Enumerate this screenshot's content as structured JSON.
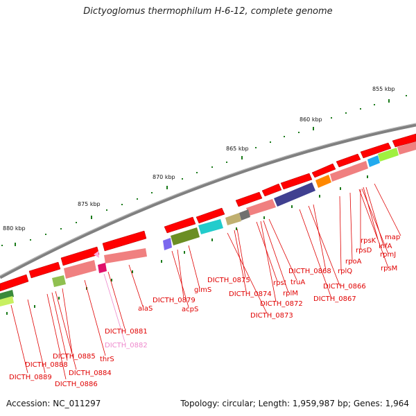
{
  "title": "Dictyoglomus thermophilum H-6-12, complete genome",
  "accession": "Accession: NC_011297",
  "summary": "Topology: circular; Length: 1,959,987 bp; Genes: 1,964",
  "ticks": [
    "855 kbp",
    "860 kbp",
    "865 kbp",
    "870 kbp",
    "875 kbp",
    "880 kbp"
  ],
  "genes": [
    {
      "text": "map",
      "color": "#e00000"
    },
    {
      "text": "infA",
      "color": "#e00000"
    },
    {
      "text": "rpsK",
      "color": "#e00000"
    },
    {
      "text": "rpmJ",
      "color": "#e00000"
    },
    {
      "text": "rpsD",
      "color": "#e00000"
    },
    {
      "text": "rpsM",
      "color": "#e00000"
    },
    {
      "text": "rpoA",
      "color": "#e00000"
    },
    {
      "text": "rplQ",
      "color": "#e00000"
    },
    {
      "text": "DICTH_0868",
      "color": "#e00000"
    },
    {
      "text": "DICTH_0866",
      "color": "#e00000"
    },
    {
      "text": "DICTH_0867",
      "color": "#e00000"
    },
    {
      "text": "rpsI",
      "color": "#e00000"
    },
    {
      "text": "truA",
      "color": "#e00000"
    },
    {
      "text": "rplM",
      "color": "#e00000"
    },
    {
      "text": "DICTH_0872",
      "color": "#e00000"
    },
    {
      "text": "DICTH_0875",
      "color": "#e00000"
    },
    {
      "text": "DICTH_0874",
      "color": "#e00000"
    },
    {
      "text": "DICTH_0873",
      "color": "#e00000"
    },
    {
      "text": "glmS",
      "color": "#e00000"
    },
    {
      "text": "DICTH_0879",
      "color": "#e00000"
    },
    {
      "text": "acpS",
      "color": "#e00000"
    },
    {
      "text": "alaS",
      "color": "#e00000"
    },
    {
      "text": "DICTH_0881",
      "color": "#e00000"
    },
    {
      "text": "DICTH_0882",
      "color": "#ee88cc"
    },
    {
      "text": "thrS",
      "color": "#e00000"
    },
    {
      "text": "DICTH_0885",
      "color": "#e00000"
    },
    {
      "text": "DICTH_0884",
      "color": "#e00000"
    },
    {
      "text": "DICTH_0888",
      "color": "#e00000"
    },
    {
      "text": "DICTH_0886",
      "color": "#e00000"
    },
    {
      "text": "DICTH_0889",
      "color": "#e00000"
    }
  ]
}
